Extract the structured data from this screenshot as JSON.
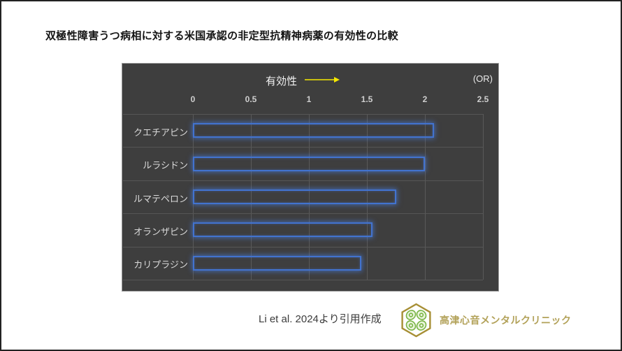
{
  "page": {
    "title": "双極性障害うつ病相に対する米国承認の非定型抗精神病薬の有効性の比較"
  },
  "chart_data": {
    "type": "bar",
    "orientation": "horizontal",
    "title": "有効性",
    "axis_annotation": "有効性 →",
    "unit_label": "(OR)",
    "categories": [
      "クエチアピン",
      "ルラシドン",
      "ルマテペロン",
      "オランザピン",
      "カリプラジン"
    ],
    "values": [
      2.08,
      2.0,
      1.75,
      1.55,
      1.45
    ],
    "xlabel": "",
    "ylabel": "",
    "xlim": [
      0,
      2.5
    ],
    "xticks": [
      0,
      0.5,
      1,
      1.5,
      2,
      2.5
    ],
    "xtick_labels": [
      "0",
      "0.5",
      "1",
      "1.5",
      "2",
      "2.5"
    ],
    "grid": true,
    "legend": false,
    "plot_background": "#3e3e3e",
    "bar_fill": "none",
    "bar_border_color": "#4273cf",
    "arrow_color": "#f5e800",
    "gridline_color": "#5a5a5a"
  },
  "footer": {
    "source": "Li et al. 2024より引用作成",
    "clinic_name": "高津心音メンタルクリニック"
  },
  "icons": {
    "effect_arrow": "right-arrow-icon",
    "logo": "hexagon-clover-icon"
  },
  "colors": {
    "page_background": "#ffffff",
    "page_border": "#222222",
    "title_text": "#141414",
    "panel_background": "#3e3e3e",
    "panel_border": "#9e9e9e",
    "axis_text": "#cfcfcf",
    "category_text": "#d9d9d9",
    "header_text": "#f2f2f2",
    "logo_gold": "#a78f35",
    "logo_green": "#79b544",
    "clinic_text_gold": "#b2a158"
  }
}
